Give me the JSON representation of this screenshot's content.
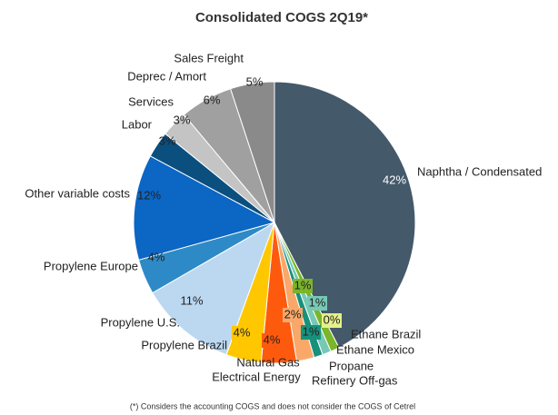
{
  "chart_data": {
    "type": "pie",
    "title": "Consolidated COGS 2Q19*",
    "categories": [
      "Naphtha / Condensated",
      "Ethane Brazil",
      "Ethane Mexico",
      "Propane",
      "Refinery Off-gas",
      "Natural Gas",
      "Electrical Energy",
      "Propylene Brazil",
      "Propylene U.S.",
      "Propylene Europe",
      "Other variable costs",
      "Labor",
      "Services",
      "Deprec / Amort",
      "Sales Freight"
    ],
    "values": [
      42,
      1,
      1,
      0,
      1,
      2,
      4,
      4,
      11,
      4,
      12,
      3,
      3,
      6,
      5
    ],
    "value_labels": [
      "42%",
      "1%",
      "1%",
      "0%",
      "1%",
      "2%",
      "4%",
      "4%",
      "11%",
      "4%",
      "12%",
      "3%",
      "3%",
      "6%",
      "5%"
    ],
    "colors": [
      "#44596a",
      "#7ab52a",
      "#77c9b5",
      "#e6ef8a",
      "#17917c",
      "#f9a86a",
      "#fe5a0e",
      "#ffc700",
      "#bcd8f1",
      "#2e8ac6",
      "#0b66c4",
      "#0a4f7e",
      "#c4c4c4",
      "#a0a0a0",
      "#8a8a8a"
    ],
    "footnote": "(*) Considers the accounting COGS and does not consider the COGS of Cetrel"
  }
}
